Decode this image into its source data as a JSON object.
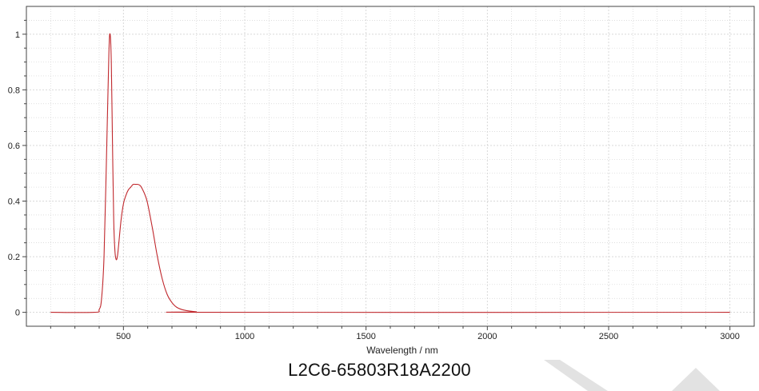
{
  "chart_data": {
    "type": "line",
    "xlabel": "Wavelength / nm",
    "ylabel": "",
    "xlim": [
      100,
      3100
    ],
    "ylim": [
      -0.05,
      1.1
    ],
    "x_ticks": [
      500,
      1000,
      1500,
      2000,
      2500,
      3000
    ],
    "y_ticks": [
      0,
      0.2,
      0.4,
      0.6,
      0.8,
      1
    ],
    "x_tick_labels": [
      "500",
      "1000",
      "1500",
      "2000",
      "2500",
      "3000"
    ],
    "y_tick_labels": [
      "0",
      "0.2",
      "0.4",
      "0.6",
      "0.8",
      "1"
    ],
    "grid": true,
    "series": [
      {
        "name": "",
        "color": "#c0282d",
        "x": [
          200,
          380,
          400,
          410,
          420,
          430,
          440,
          445,
          450,
          455,
          460,
          465,
          470,
          475,
          480,
          490,
          500,
          510,
          520,
          530,
          540,
          550,
          560,
          570,
          580,
          590,
          600,
          620,
          640,
          660,
          680,
          700,
          720,
          750,
          800,
          850,
          3000
        ],
        "y": [
          0,
          0,
          0.01,
          0.05,
          0.2,
          0.55,
          0.93,
          1.0,
          0.9,
          0.6,
          0.33,
          0.22,
          0.19,
          0.2,
          0.24,
          0.33,
          0.39,
          0.42,
          0.44,
          0.45,
          0.46,
          0.46,
          0.46,
          0.455,
          0.44,
          0.42,
          0.39,
          0.3,
          0.2,
          0.12,
          0.065,
          0.035,
          0.018,
          0.008,
          0.002,
          0,
          0
        ]
      }
    ]
  },
  "caption": "L2C6-65803R18A2200",
  "colors": {
    "line": "#c0282d",
    "grid": "#d4d4d4",
    "axis": "#444444",
    "watermark": "#dcdcdc"
  }
}
